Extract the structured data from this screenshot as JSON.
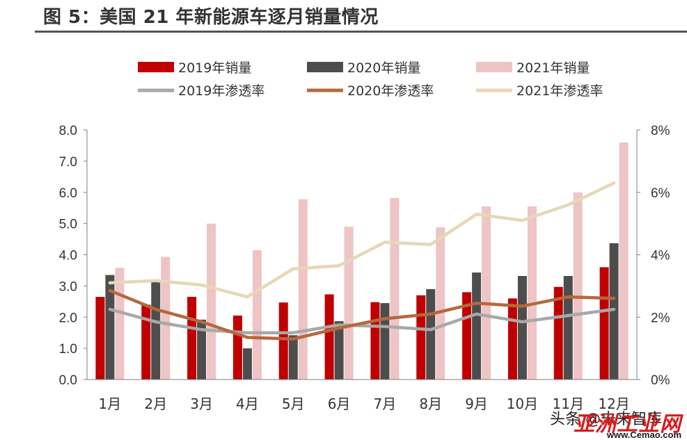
{
  "title": "图 5：美国 21 年新能源车逐月销量情况",
  "chart_data": {
    "type": "bar",
    "categories": [
      "1月",
      "2月",
      "3月",
      "4月",
      "5月",
      "6月",
      "7月",
      "8月",
      "9月",
      "10月",
      "11月",
      "12月"
    ],
    "bar_series": [
      {
        "name": "2019年销量",
        "color": "#c00000",
        "values": [
          2.65,
          2.4,
          2.65,
          2.05,
          2.47,
          2.73,
          2.48,
          2.7,
          2.8,
          2.6,
          2.97,
          3.6
        ]
      },
      {
        "name": "2020年销量",
        "color": "#4d4d4d",
        "values": [
          3.35,
          3.12,
          1.92,
          1.0,
          1.42,
          1.87,
          2.45,
          2.9,
          3.43,
          3.32,
          3.32,
          4.37
        ]
      },
      {
        "name": "2021年销量",
        "color": "#eec4c4",
        "values": [
          3.58,
          3.93,
          5.0,
          4.15,
          5.78,
          4.9,
          5.82,
          4.88,
          5.55,
          5.55,
          6.0,
          7.6
        ]
      }
    ],
    "line_series": [
      {
        "name": "2019年渗透率",
        "color": "#a8a8a8",
        "values": [
          2.25,
          1.85,
          1.6,
          1.5,
          1.5,
          1.75,
          1.7,
          1.6,
          2.1,
          1.85,
          2.05,
          2.25
        ]
      },
      {
        "name": "2020年渗透率",
        "color": "#b5683d",
        "values": [
          2.85,
          2.25,
          1.85,
          1.35,
          1.3,
          1.65,
          1.95,
          2.1,
          2.45,
          2.35,
          2.65,
          2.6
        ]
      },
      {
        "name": "2021年渗透率",
        "color": "#e8d7b5",
        "values": [
          3.1,
          3.17,
          3.03,
          2.65,
          3.55,
          3.65,
          4.4,
          4.33,
          5.3,
          5.1,
          5.6,
          6.3
        ]
      }
    ],
    "y_left": {
      "min": 0,
      "max": 8,
      "ticks": [
        "0.0",
        "1.0",
        "2.0",
        "3.0",
        "4.0",
        "5.0",
        "6.0",
        "7.0",
        "8.0"
      ]
    },
    "y_right": {
      "min": 0,
      "max": 8,
      "ticks": [
        "0%",
        "2%",
        "4%",
        "6%",
        "8%"
      ]
    },
    "legend_position": "top"
  },
  "watermark": {
    "text": "亚洲工业网",
    "url": "www.Cemao.com",
    "source": "头条 @未来智库"
  }
}
